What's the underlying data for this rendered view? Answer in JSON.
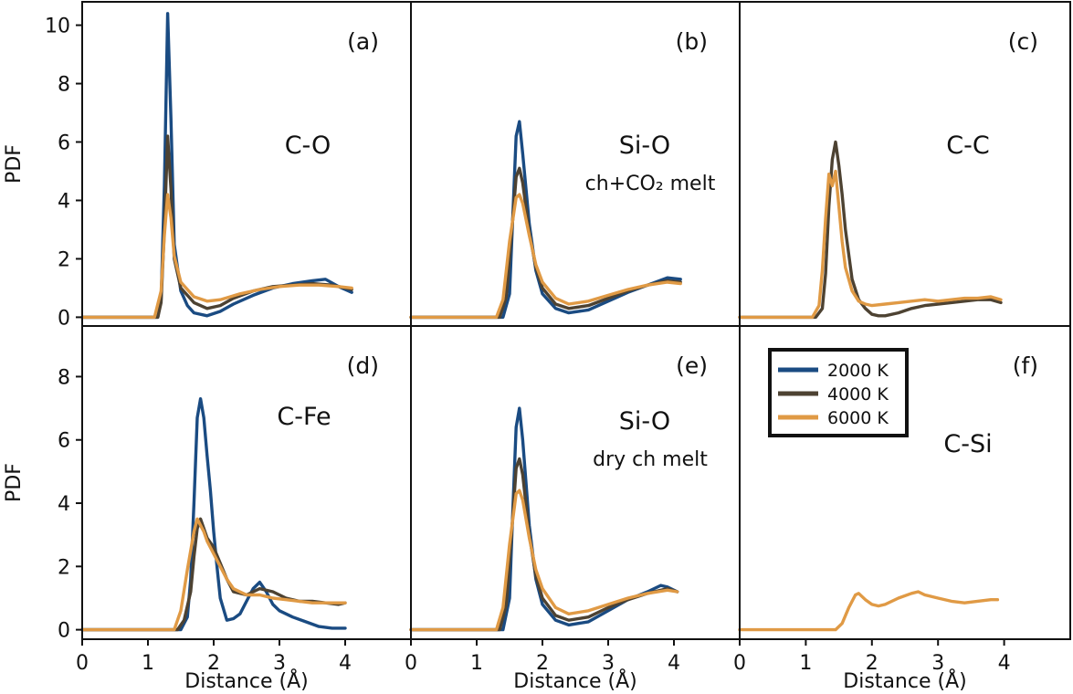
{
  "chart_data": {
    "type": "line",
    "xlabel": "Distance (Å)",
    "ylabel": "PDF",
    "xlim": [
      0,
      5
    ],
    "x_ticks": [
      0,
      1,
      2,
      3,
      4
    ],
    "rows": [
      {
        "ylim": [
          -0.3,
          10.8
        ],
        "y_ticks": [
          0,
          2,
          4,
          6,
          8,
          10
        ]
      },
      {
        "ylim": [
          -0.3,
          9.6
        ],
        "y_ticks": [
          0,
          2,
          4,
          6,
          8
        ]
      }
    ],
    "legend": {
      "location": "upper-left of panel (f)",
      "entries": [
        {
          "name": "2000 K",
          "color": "#1a4b82"
        },
        {
          "name": "4000 K",
          "color": "#4d4232"
        },
        {
          "name": "6000 K",
          "color": "#e09a45"
        }
      ]
    },
    "panels": [
      {
        "id": "a",
        "tag": "(a)",
        "pair": "C-O",
        "subtitle": "",
        "series": [
          {
            "name": "2000 K",
            "x": [
              0,
              1.15,
              1.2,
              1.25,
              1.3,
              1.35,
              1.4,
              1.5,
              1.6,
              1.7,
              1.9,
              2.1,
              2.3,
              2.6,
              2.9,
              3.2,
              3.5,
              3.7,
              3.9,
              4.1
            ],
            "y": [
              0,
              0,
              0.6,
              4.5,
              10.4,
              6.8,
              2.5,
              0.9,
              0.4,
              0.15,
              0.05,
              0.2,
              0.45,
              0.75,
              1.0,
              1.15,
              1.25,
              1.3,
              1.05,
              0.85
            ]
          },
          {
            "name": "4000 K",
            "x": [
              0,
              1.15,
              1.2,
              1.25,
              1.3,
              1.35,
              1.4,
              1.5,
              1.7,
              1.9,
              2.1,
              2.3,
              2.6,
              2.9,
              3.2,
              3.5,
              3.8,
              4.1
            ],
            "y": [
              0,
              0,
              0.5,
              3.0,
              6.2,
              4.4,
              2.0,
              1.0,
              0.5,
              0.3,
              0.4,
              0.65,
              0.9,
              1.05,
              1.1,
              1.15,
              1.1,
              0.95
            ]
          },
          {
            "name": "6000 K",
            "x": [
              0,
              1.1,
              1.2,
              1.25,
              1.3,
              1.35,
              1.4,
              1.5,
              1.7,
              1.9,
              2.1,
              2.4,
              2.7,
              3.0,
              3.3,
              3.6,
              3.9,
              4.1
            ],
            "y": [
              0,
              0,
              0.9,
              2.8,
              4.2,
              3.4,
              2.1,
              1.2,
              0.7,
              0.55,
              0.6,
              0.8,
              0.95,
              1.05,
              1.1,
              1.1,
              1.05,
              1.0
            ]
          }
        ]
      },
      {
        "id": "b",
        "tag": "(b)",
        "pair": "Si-O",
        "subtitle": "ch+CO₂ melt",
        "series": [
          {
            "name": "2000 K",
            "x": [
              0,
              1.4,
              1.5,
              1.55,
              1.6,
              1.65,
              1.7,
              1.8,
              1.9,
              2.0,
              2.2,
              2.4,
              2.7,
              3.0,
              3.3,
              3.6,
              3.9,
              4.1
            ],
            "y": [
              0,
              0,
              0.8,
              3.5,
              6.2,
              6.7,
              5.6,
              3.2,
              1.6,
              0.8,
              0.3,
              0.15,
              0.25,
              0.55,
              0.85,
              1.1,
              1.35,
              1.3
            ]
          },
          {
            "name": "4000 K",
            "x": [
              0,
              1.35,
              1.45,
              1.55,
              1.6,
              1.65,
              1.7,
              1.8,
              1.9,
              2.0,
              2.2,
              2.4,
              2.7,
              3.0,
              3.3,
              3.6,
              3.9,
              4.1
            ],
            "y": [
              0,
              0,
              0.7,
              3.4,
              4.8,
              5.1,
              4.6,
              2.9,
              1.7,
              1.0,
              0.45,
              0.3,
              0.4,
              0.65,
              0.9,
              1.1,
              1.25,
              1.2
            ]
          },
          {
            "name": "6000 K",
            "x": [
              0,
              1.3,
              1.4,
              1.5,
              1.6,
              1.65,
              1.7,
              1.8,
              1.9,
              2.0,
              2.2,
              2.4,
              2.7,
              3.0,
              3.3,
              3.6,
              3.9,
              4.1
            ],
            "y": [
              0,
              0,
              0.6,
              2.6,
              4.1,
              4.2,
              3.9,
              2.8,
              1.8,
              1.2,
              0.65,
              0.45,
              0.55,
              0.75,
              0.95,
              1.1,
              1.2,
              1.15
            ]
          }
        ]
      },
      {
        "id": "c",
        "tag": "(c)",
        "pair": "C-C",
        "subtitle": "",
        "series": [
          {
            "name": "4000 K",
            "x": [
              0,
              1.15,
              1.25,
              1.3,
              1.35,
              1.4,
              1.45,
              1.5,
              1.55,
              1.6,
              1.7,
              1.8,
              1.9,
              2.0,
              2.1,
              2.2,
              2.4,
              2.6,
              2.8,
              3.0,
              3.2,
              3.4,
              3.6,
              3.8,
              3.95
            ],
            "y": [
              0,
              0,
              0.3,
              1.5,
              3.8,
              5.4,
              6.0,
              5.2,
              4.2,
              3.0,
              1.3,
              0.6,
              0.3,
              0.1,
              0.05,
              0.05,
              0.15,
              0.3,
              0.4,
              0.45,
              0.5,
              0.55,
              0.6,
              0.6,
              0.5
            ]
          },
          {
            "name": "6000 K",
            "x": [
              0,
              1.1,
              1.2,
              1.25,
              1.3,
              1.35,
              1.4,
              1.45,
              1.5,
              1.55,
              1.6,
              1.7,
              1.8,
              1.9,
              2.0,
              2.2,
              2.4,
              2.6,
              2.8,
              3.0,
              3.2,
              3.4,
              3.6,
              3.8,
              3.95
            ],
            "y": [
              0,
              0,
              0.4,
              1.6,
              3.4,
              4.9,
              4.5,
              5.0,
              3.8,
              2.6,
              1.7,
              0.9,
              0.55,
              0.45,
              0.4,
              0.45,
              0.5,
              0.55,
              0.6,
              0.55,
              0.6,
              0.65,
              0.65,
              0.7,
              0.6
            ]
          }
        ]
      },
      {
        "id": "d",
        "tag": "(d)",
        "pair": "C-Fe",
        "subtitle": "",
        "series": [
          {
            "name": "2000 K",
            "x": [
              0,
              1.5,
              1.6,
              1.65,
              1.7,
              1.75,
              1.8,
              1.85,
              1.9,
              1.95,
              2.0,
              2.05,
              2.1,
              2.2,
              2.3,
              2.4,
              2.5,
              2.6,
              2.7,
              2.8,
              2.9,
              3.0,
              3.2,
              3.4,
              3.6,
              3.8,
              4.0
            ],
            "y": [
              0,
              0,
              0.4,
              1.6,
              4.0,
              6.7,
              7.3,
              6.7,
              5.5,
              4.4,
              3.1,
              2.0,
              1.0,
              0.3,
              0.35,
              0.5,
              0.9,
              1.3,
              1.5,
              1.2,
              0.8,
              0.6,
              0.4,
              0.25,
              0.1,
              0.05,
              0.05
            ]
          },
          {
            "name": "4000 K",
            "x": [
              0,
              1.45,
              1.55,
              1.65,
              1.7,
              1.75,
              1.8,
              1.85,
              1.9,
              2.0,
              2.1,
              2.2,
              2.3,
              2.5,
              2.7,
              2.9,
              3.1,
              3.3,
              3.5,
              3.7,
              3.9,
              4.0
            ],
            "y": [
              0,
              0,
              0.3,
              1.2,
              2.3,
              3.2,
              3.5,
              3.2,
              2.9,
              2.6,
              2.1,
              1.6,
              1.2,
              1.1,
              1.3,
              1.2,
              1.0,
              0.9,
              0.9,
              0.85,
              0.8,
              0.85
            ]
          },
          {
            "name": "6000 K",
            "x": [
              0,
              1.4,
              1.5,
              1.6,
              1.7,
              1.75,
              1.8,
              1.85,
              1.9,
              2.0,
              2.1,
              2.2,
              2.3,
              2.5,
              2.7,
              2.9,
              3.1,
              3.3,
              3.5,
              3.7,
              3.9,
              4.0
            ],
            "y": [
              0,
              0,
              0.6,
              1.9,
              3.1,
              3.5,
              3.3,
              3.1,
              2.8,
              2.4,
              2.0,
              1.6,
              1.3,
              1.1,
              1.1,
              1.0,
              0.95,
              0.9,
              0.85,
              0.85,
              0.85,
              0.85
            ]
          }
        ]
      },
      {
        "id": "e",
        "tag": "(e)",
        "pair": "Si-O",
        "subtitle": "dry ch melt",
        "series": [
          {
            "name": "2000 K",
            "x": [
              0,
              1.4,
              1.5,
              1.55,
              1.6,
              1.65,
              1.7,
              1.8,
              1.9,
              2.0,
              2.2,
              2.4,
              2.7,
              3.0,
              3.3,
              3.6,
              3.8,
              3.9,
              4.05
            ],
            "y": [
              0,
              0,
              1.0,
              3.8,
              6.4,
              7.0,
              6.0,
              3.3,
              1.6,
              0.8,
              0.3,
              0.15,
              0.25,
              0.6,
              0.95,
              1.2,
              1.4,
              1.35,
              1.2
            ]
          },
          {
            "name": "4000 K",
            "x": [
              0,
              1.35,
              1.45,
              1.55,
              1.6,
              1.65,
              1.7,
              1.8,
              1.9,
              2.0,
              2.2,
              2.4,
              2.7,
              3.0,
              3.3,
              3.6,
              3.9,
              4.05
            ],
            "y": [
              0,
              0,
              0.8,
              3.6,
              5.1,
              5.4,
              4.9,
              3.0,
              1.7,
              1.0,
              0.45,
              0.3,
              0.4,
              0.7,
              0.95,
              1.15,
              1.3,
              1.2
            ]
          },
          {
            "name": "6000 K",
            "x": [
              0,
              1.3,
              1.4,
              1.5,
              1.6,
              1.65,
              1.7,
              1.8,
              1.9,
              2.0,
              2.2,
              2.4,
              2.7,
              3.0,
              3.3,
              3.6,
              3.9,
              4.05
            ],
            "y": [
              0,
              0,
              0.7,
              2.7,
              4.3,
              4.4,
              4.1,
              2.9,
              1.9,
              1.3,
              0.7,
              0.5,
              0.6,
              0.8,
              1.0,
              1.15,
              1.25,
              1.2
            ]
          }
        ]
      },
      {
        "id": "f",
        "tag": "(f)",
        "pair": "C-Si",
        "subtitle": "",
        "series": [
          {
            "name": "6000 K",
            "x": [
              0,
              1.45,
              1.55,
              1.65,
              1.75,
              1.8,
              1.9,
              2.0,
              2.1,
              2.2,
              2.4,
              2.6,
              2.7,
              2.8,
              3.0,
              3.2,
              3.4,
              3.6,
              3.8,
              3.9
            ],
            "y": [
              0,
              0,
              0.2,
              0.7,
              1.1,
              1.15,
              0.95,
              0.8,
              0.75,
              0.8,
              1.0,
              1.15,
              1.2,
              1.1,
              1.0,
              0.9,
              0.85,
              0.9,
              0.95,
              0.95
            ]
          }
        ]
      }
    ]
  }
}
